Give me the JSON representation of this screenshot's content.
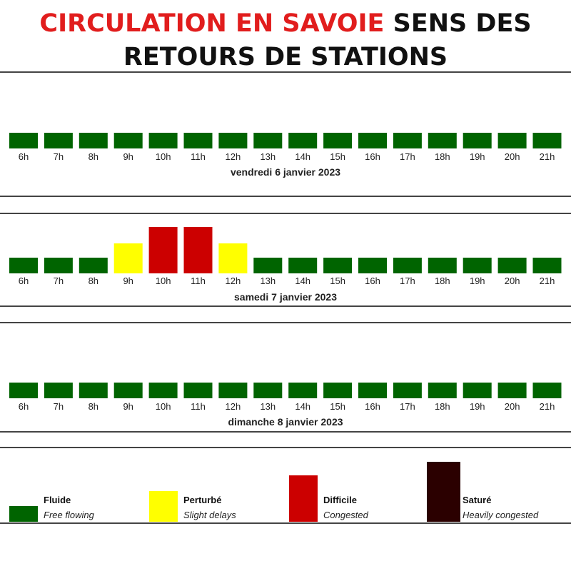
{
  "title": {
    "part1": "CIRCULATION EN SAVOIE",
    "part2": " SENS DES RETOURS DE STATIONS"
  },
  "colors": {
    "fluide": "#006400",
    "perturbe": "#ffff00",
    "difficile": "#cc0000",
    "sature": "#2b0000",
    "title_accent": "#e11d1d"
  },
  "chart_data": [
    {
      "type": "bar",
      "title": "vendredi 6 janvier 2023",
      "categories": [
        "6h",
        "7h",
        "8h",
        "9h",
        "10h",
        "11h",
        "12h",
        "13h",
        "14h",
        "15h",
        "16h",
        "17h",
        "18h",
        "19h",
        "20h",
        "21h"
      ],
      "values": [
        "Fluide",
        "Fluide",
        "Fluide",
        "Fluide",
        "Fluide",
        "Fluide",
        "Fluide",
        "Fluide",
        "Fluide",
        "Fluide",
        "Fluide",
        "Fluide",
        "Fluide",
        "Fluide",
        "Fluide",
        "Fluide"
      ],
      "levels": [
        1,
        1,
        1,
        1,
        1,
        1,
        1,
        1,
        1,
        1,
        1,
        1,
        1,
        1,
        1,
        1
      ]
    },
    {
      "type": "bar",
      "title": "samedi 7 janvier 2023",
      "categories": [
        "6h",
        "7h",
        "8h",
        "9h",
        "10h",
        "11h",
        "12h",
        "13h",
        "14h",
        "15h",
        "16h",
        "17h",
        "18h",
        "19h",
        "20h",
        "21h"
      ],
      "values": [
        "Fluide",
        "Fluide",
        "Fluide",
        "Perturbé",
        "Difficile",
        "Difficile",
        "Perturbé",
        "Fluide",
        "Fluide",
        "Fluide",
        "Fluide",
        "Fluide",
        "Fluide",
        "Fluide",
        "Fluide",
        "Fluide"
      ],
      "levels": [
        1,
        1,
        1,
        2,
        3,
        3,
        2,
        1,
        1,
        1,
        1,
        1,
        1,
        1,
        1,
        1
      ]
    },
    {
      "type": "bar",
      "title": "dimanche 8 janvier 2023",
      "categories": [
        "6h",
        "7h",
        "8h",
        "9h",
        "10h",
        "11h",
        "12h",
        "13h",
        "14h",
        "15h",
        "16h",
        "17h",
        "18h",
        "19h",
        "20h",
        "21h"
      ],
      "values": [
        "Fluide",
        "Fluide",
        "Fluide",
        "Fluide",
        "Fluide",
        "Fluide",
        "Fluide",
        "Fluide",
        "Fluide",
        "Fluide",
        "Fluide",
        "Fluide",
        "Fluide",
        "Fluide",
        "Fluide",
        "Fluide"
      ],
      "levels": [
        1,
        1,
        1,
        1,
        1,
        1,
        1,
        1,
        1,
        1,
        1,
        1,
        1,
        1,
        1,
        1
      ]
    }
  ],
  "legend": [
    {
      "key": "fluide",
      "fr": "Fluide",
      "en": "Free flowing",
      "level": 1
    },
    {
      "key": "perturbe",
      "fr": "Perturbé",
      "en": "Slight delays",
      "level": 2
    },
    {
      "key": "difficile",
      "fr": "Difficile",
      "en": "Congested",
      "level": 3
    },
    {
      "key": "sature",
      "fr": "Saturé",
      "en": "Heavily congested",
      "level": 4
    }
  ]
}
